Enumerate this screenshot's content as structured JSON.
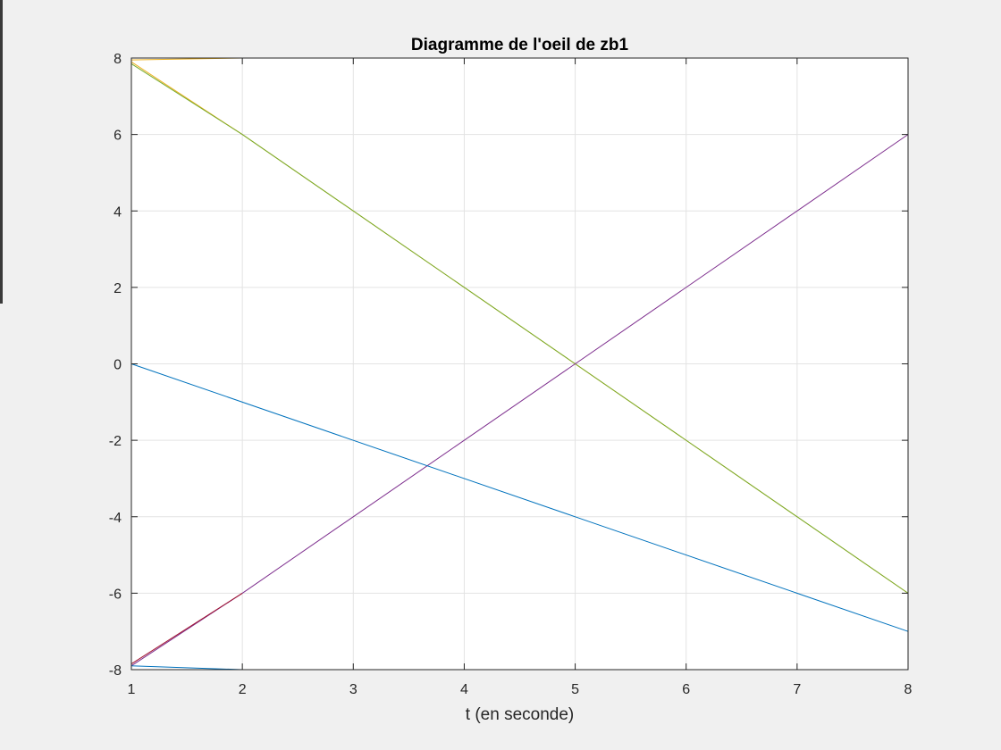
{
  "chart_data": {
    "type": "line",
    "title": "Diagramme de l'oeil de zb1",
    "xlabel": "t (en seconde)",
    "ylabel": "",
    "xlim": [
      1,
      8
    ],
    "ylim": [
      -8,
      8
    ],
    "xticks": [
      1,
      2,
      3,
      4,
      5,
      6,
      7,
      8
    ],
    "yticks": [
      -8,
      -6,
      -4,
      -2,
      0,
      2,
      4,
      6,
      8
    ],
    "grid": true,
    "series": [
      {
        "color": "#D95319",
        "x": [
          1,
          8
        ],
        "y": [
          8,
          8
        ]
      },
      {
        "color": "#EDB120",
        "x": [
          1,
          2,
          8
        ],
        "y": [
          7.95,
          8,
          8
        ]
      },
      {
        "color": "#EDB120",
        "x": [
          1,
          2,
          8
        ],
        "y": [
          7.9,
          6,
          -6
        ]
      },
      {
        "color": "#77AC30",
        "x": [
          1,
          2,
          5,
          8
        ],
        "y": [
          7.85,
          6,
          0,
          -6
        ]
      },
      {
        "color": "#7E2F8E",
        "x": [
          1,
          2,
          5,
          8
        ],
        "y": [
          -7.9,
          -6,
          0,
          6
        ]
      },
      {
        "color": "#A2142F",
        "x": [
          1,
          2
        ],
        "y": [
          -7.85,
          -6
        ]
      },
      {
        "color": "#0072BD",
        "x": [
          1,
          5,
          8
        ],
        "y": [
          0,
          -4,
          -7
        ]
      },
      {
        "color": "#0072BD",
        "x": [
          1,
          2,
          8
        ],
        "y": [
          -7.9,
          -8,
          -8
        ]
      },
      {
        "color": "#4DBEEE",
        "x": [
          1,
          8
        ],
        "y": [
          -8,
          -8
        ]
      }
    ]
  }
}
